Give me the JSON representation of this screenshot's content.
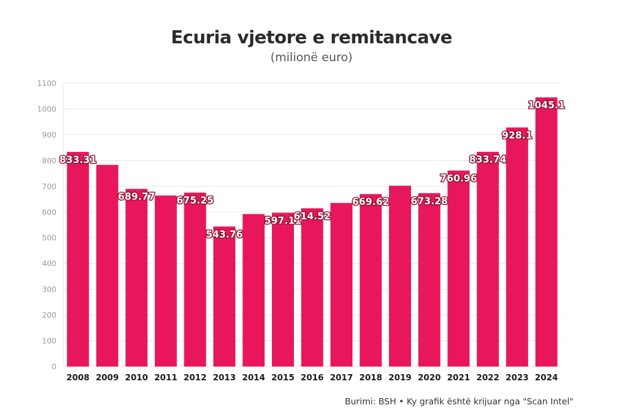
{
  "title": "Ecuria vjetore e remitancave",
  "subtitle": "(milionë euro)",
  "source": "Burimi: BSH • Ky grafik është krijuar nga \"Scan Intel\"",
  "colors": {
    "bar": "#e8175b",
    "grid": "#e8e8e8",
    "label_outline": "#8a0f2e"
  },
  "chart_data": {
    "type": "bar",
    "title": "Ecuria vjetore e remitancave",
    "subtitle": "(milionë euro)",
    "xlabel": "",
    "ylabel": "",
    "categories": [
      "2008",
      "2009",
      "2010",
      "2011",
      "2012",
      "2013",
      "2014",
      "2015",
      "2016",
      "2017",
      "2018",
      "2019",
      "2020",
      "2021",
      "2022",
      "2023",
      "2024"
    ],
    "values": [
      833.31,
      783,
      689.77,
      664,
      675.25,
      543.76,
      592,
      597.11,
      614.52,
      635,
      669.62,
      702,
      673.28,
      760.96,
      833.74,
      928.1,
      1045.1
    ],
    "data_labels": [
      "833.31",
      null,
      "689.77",
      null,
      "675.25",
      "543.76",
      null,
      "597.11",
      "614.52",
      null,
      "669.62",
      null,
      "673.28",
      "760.96",
      "833.74",
      "928.1",
      "1045.1"
    ],
    "ylim": [
      0,
      1100
    ],
    "yticks": [
      0,
      100,
      200,
      300,
      400,
      500,
      600,
      700,
      800,
      900,
      1000,
      1100
    ],
    "grid": true,
    "legend": "none"
  }
}
